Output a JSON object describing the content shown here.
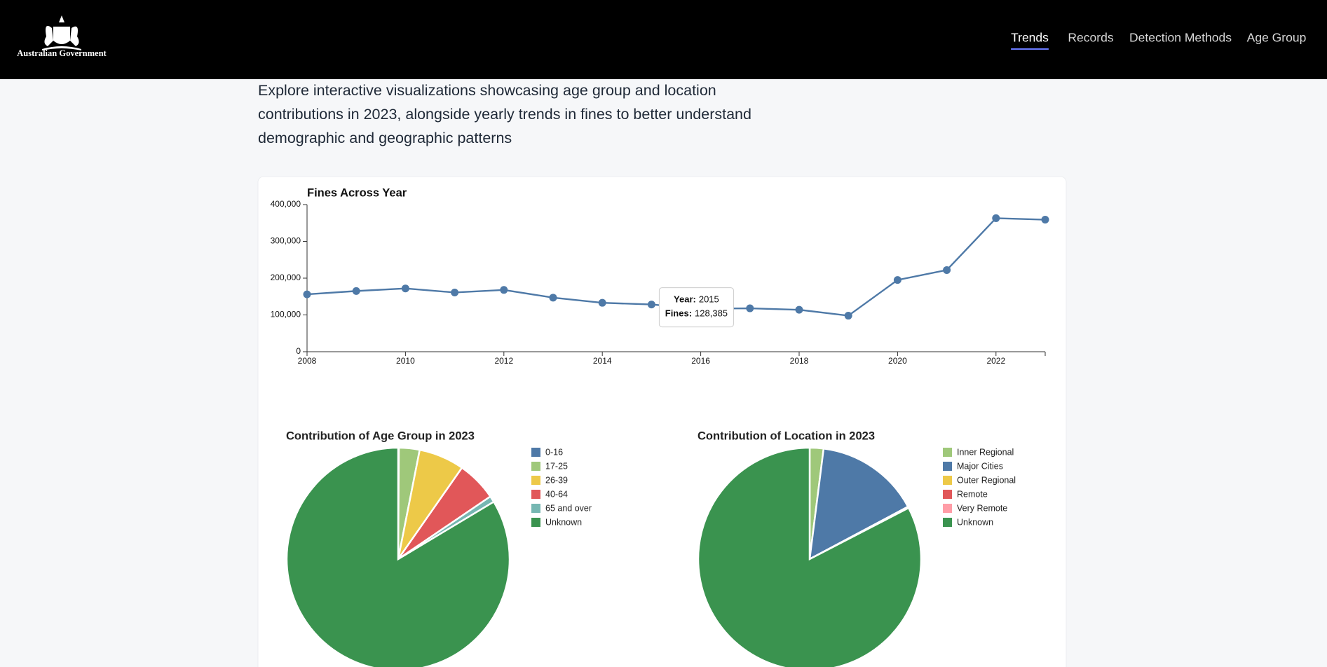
{
  "header": {
    "logo_text": "Australian Government",
    "nav": [
      "Trends",
      "Records",
      "Detection Methods",
      "Age Group"
    ],
    "active_index": 0
  },
  "intro": "Explore interactive visualizations showcasing age group and location contributions in 2023, alongside yearly trends in fines to better understand demographic and geographic patterns",
  "chart_data": [
    {
      "type": "line",
      "title": "Fines Across Year",
      "x": [
        2008,
        2009,
        2010,
        2011,
        2012,
        2013,
        2014,
        2015,
        2016,
        2017,
        2018,
        2019,
        2020,
        2021,
        2022,
        2023
      ],
      "values": [
        156000,
        165000,
        172000,
        161000,
        168000,
        147000,
        133000,
        128385,
        117000,
        118000,
        114000,
        98000,
        195000,
        222000,
        363000,
        359000
      ],
      "color": "#4e79a7",
      "xlim": [
        2008,
        2023
      ],
      "xticks": [
        2008,
        2010,
        2012,
        2014,
        2016,
        2018,
        2020,
        2022
      ],
      "ylim": [
        0,
        400000
      ],
      "yticks": [
        0,
        {
          "value": 100000,
          "label": "100,000"
        },
        {
          "value": 200000,
          "label": "200,000"
        },
        {
          "value": 300000,
          "label": "300,000"
        },
        {
          "value": 400000,
          "label": "400,000"
        }
      ],
      "tooltip": {
        "year_label": "Year:",
        "year": 2015,
        "fines_label": "Fines:",
        "fines": "128,385"
      }
    },
    {
      "type": "pie",
      "title": "Contribution of Age Group in 2023",
      "categories": [
        "0-16",
        "17-25",
        "26-39",
        "40-64",
        "65 and over",
        "Unknown"
      ],
      "values": [
        0.1,
        3.0,
        6.6,
        5.8,
        0.9,
        83.6
      ],
      "colors": [
        "#4e79a7",
        "#9fc87a",
        "#edc948",
        "#e15759",
        "#76b7b2",
        "#3a934f"
      ]
    },
    {
      "type": "pie",
      "title": "Contribution of Location in 2023",
      "categories": [
        "Inner Regional",
        "Major Cities",
        "Outer Regional",
        "Remote",
        "Very Remote",
        "Unknown"
      ],
      "values": [
        2.0,
        15.2,
        0.1,
        0.1,
        0,
        82.6
      ],
      "colors": [
        "#9fc87a",
        "#4e79a7",
        "#edc948",
        "#e15759",
        "#ff9da7",
        "#3a934f"
      ]
    }
  ]
}
